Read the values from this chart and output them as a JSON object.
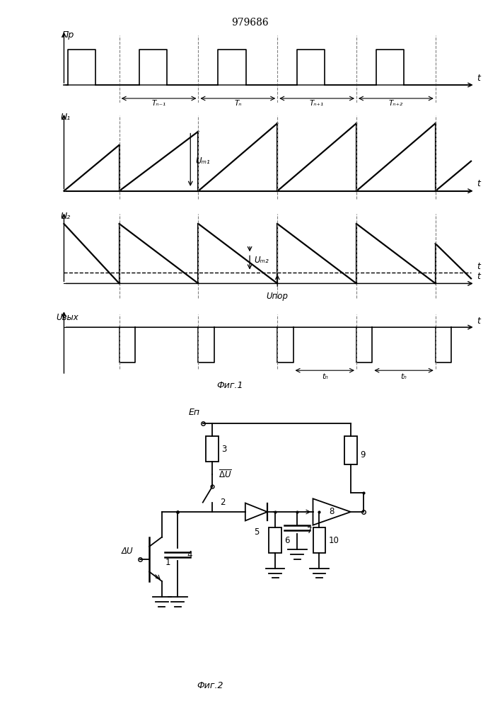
{
  "title": "979686",
  "fig1_label": "Фиг.1",
  "fig2_label": "Фиг.2",
  "label_pr": "Пр",
  "label_u1": "U₁",
  "label_u2": "U₂",
  "label_uvyx": "Uвых",
  "label_t": "t",
  "period_labels": [
    "Tₙ₋₁",
    "Tₙ",
    "Tₙ₊₁",
    "Tₙ₊₂"
  ],
  "ann_um1": "Uₘ₁",
  "ann_um2": "Uₘ₂",
  "ann_upor": "Uпор",
  "ann_tn": "tₙ",
  "label_ep": "Еп",
  "label_dU": "ΔU",
  "label_dU_bar": "ΔU",
  "bg_color": "#ffffff",
  "line_color": "#000000"
}
